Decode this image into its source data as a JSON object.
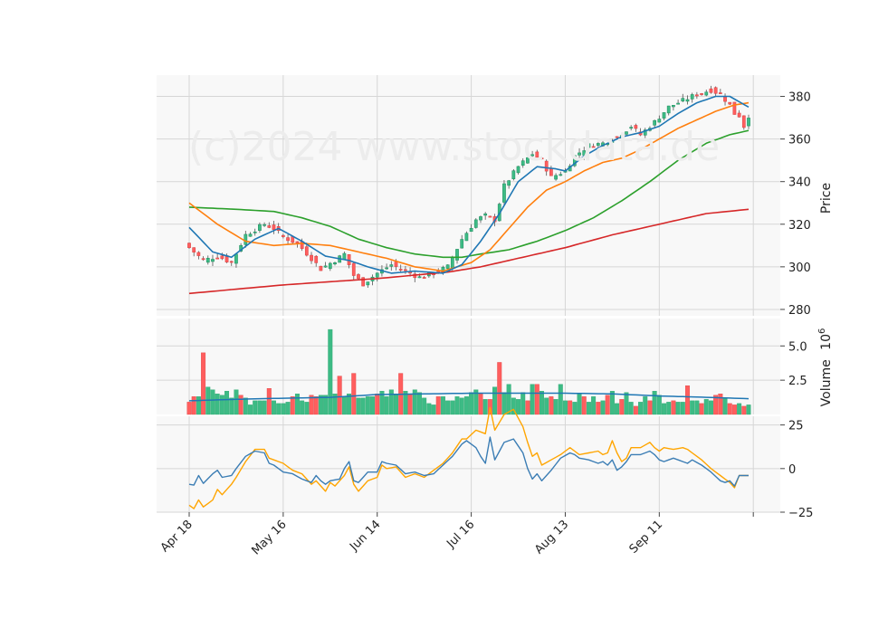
{
  "chart_data": {
    "type": "candlestick",
    "watermark": "(c)2024 www.stockdata.de",
    "colors": {
      "up": "#26a69a",
      "up_fill": "#3dbb85",
      "down": "#ef5350",
      "down_fill": "#ff5e5e",
      "ma_short": "#1f77b4",
      "ma_mid": "#ff7f0e",
      "ma_long": "#2ca02c",
      "ma_200": "#d62728",
      "volume_ma": "#1f77b4",
      "osc_blue": "#3b7db4",
      "osc_orange": "#ffa500",
      "panel_bg": "#f8f8f8",
      "grid": "#d6d6d6"
    },
    "x_axis": {
      "tick_labels": [
        "Apr 18",
        "May 16",
        "Jun 14",
        "Jul 16",
        "Aug 13",
        "Sep 11"
      ],
      "tick_index": [
        0,
        20,
        40,
        60,
        80,
        100
      ],
      "extra_tick_index": 120,
      "n_bars": 120
    },
    "price_panel": {
      "ylabel": "Price",
      "ylim": [
        277,
        390
      ],
      "ticks": [
        280,
        300,
        320,
        340,
        360,
        380
      ],
      "anchors_close": [
        [
          0,
          309
        ],
        [
          3,
          303
        ],
        [
          6,
          305
        ],
        [
          9,
          302
        ],
        [
          12,
          315
        ],
        [
          16,
          320
        ],
        [
          18,
          318
        ],
        [
          20,
          314
        ],
        [
          23,
          311
        ],
        [
          26,
          304
        ],
        [
          28,
          299
        ],
        [
          31,
          303
        ],
        [
          33,
          306
        ],
        [
          35,
          296
        ],
        [
          37,
          292
        ],
        [
          40,
          297
        ],
        [
          43,
          301
        ],
        [
          46,
          298
        ],
        [
          49,
          295
        ],
        [
          52,
          297
        ],
        [
          55,
          300
        ],
        [
          58,
          313
        ],
        [
          61,
          322
        ],
        [
          63,
          324
        ],
        [
          65,
          322
        ],
        [
          67,
          338
        ],
        [
          70,
          347
        ],
        [
          73,
          353
        ],
        [
          75,
          350
        ],
        [
          77,
          342
        ],
        [
          80,
          345
        ],
        [
          82,
          352
        ],
        [
          85,
          357
        ],
        [
          88,
          358
        ],
        [
          91,
          361
        ],
        [
          94,
          366
        ],
        [
          96,
          362
        ],
        [
          99,
          368
        ],
        [
          102,
          375
        ],
        [
          105,
          378
        ],
        [
          108,
          381
        ],
        [
          111,
          383
        ],
        [
          113,
          381
        ],
        [
          115,
          376
        ],
        [
          116,
          372
        ],
        [
          117,
          371
        ],
        [
          118,
          366
        ],
        [
          119,
          371
        ]
      ],
      "anchors_ma20": [
        [
          0,
          318.5
        ],
        [
          5,
          307
        ],
        [
          9,
          304.5
        ],
        [
          14,
          313
        ],
        [
          19,
          318
        ],
        [
          24,
          312
        ],
        [
          29,
          305
        ],
        [
          34,
          303
        ],
        [
          38,
          300
        ],
        [
          43,
          297
        ],
        [
          48,
          298
        ],
        [
          54,
          297
        ],
        [
          58,
          301
        ],
        [
          62,
          312
        ],
        [
          66,
          325
        ],
        [
          70,
          340
        ],
        [
          74,
          347
        ],
        [
          78,
          346
        ],
        [
          80,
          345
        ],
        [
          84,
          352
        ],
        [
          88,
          357
        ],
        [
          92,
          361
        ],
        [
          96,
          363
        ],
        [
          100,
          366
        ],
        [
          104,
          372
        ],
        [
          108,
          377
        ],
        [
          112,
          380
        ],
        [
          115,
          380
        ],
        [
          119,
          375
        ]
      ],
      "anchors_ma50": [
        [
          0,
          330
        ],
        [
          6,
          320
        ],
        [
          12,
          312
        ],
        [
          18,
          310
        ],
        [
          24,
          311
        ],
        [
          30,
          310
        ],
        [
          36,
          307
        ],
        [
          42,
          304
        ],
        [
          48,
          300
        ],
        [
          54,
          298
        ],
        [
          60,
          302
        ],
        [
          64,
          308
        ],
        [
          68,
          318
        ],
        [
          72,
          328
        ],
        [
          76,
          336
        ],
        [
          80,
          340
        ],
        [
          84,
          345
        ],
        [
          88,
          349
        ],
        [
          92,
          351
        ],
        [
          96,
          355
        ],
        [
          100,
          360
        ],
        [
          104,
          365
        ],
        [
          108,
          369
        ],
        [
          112,
          373
        ],
        [
          116,
          376
        ],
        [
          119,
          377
        ]
      ],
      "anchors_ma100": [
        [
          0,
          328
        ],
        [
          10,
          327
        ],
        [
          18,
          326
        ],
        [
          24,
          323
        ],
        [
          30,
          319
        ],
        [
          36,
          313
        ],
        [
          42,
          309
        ],
        [
          48,
          306
        ],
        [
          54,
          304.5
        ],
        [
          58,
          304.5
        ],
        [
          62,
          306
        ],
        [
          68,
          308
        ],
        [
          74,
          312
        ],
        [
          80,
          317
        ],
        [
          86,
          323
        ],
        [
          92,
          331
        ],
        [
          98,
          340
        ],
        [
          104,
          350
        ],
        [
          110,
          358
        ],
        [
          115,
          362
        ],
        [
          119,
          364
        ]
      ],
      "anchors_ma200": [
        [
          0,
          287.5
        ],
        [
          20,
          291.5
        ],
        [
          40,
          294.5
        ],
        [
          55,
          297.5
        ],
        [
          62,
          300
        ],
        [
          70,
          304
        ],
        [
          80,
          309
        ],
        [
          90,
          315
        ],
        [
          100,
          320
        ],
        [
          110,
          325
        ],
        [
          119,
          327
        ]
      ]
    },
    "volume_panel": {
      "ylabel": "Volume",
      "ylabel_exponent": "10",
      "ylabel_exponent_power": "6",
      "ylim": [
        0,
        7
      ],
      "ticks": [
        2.5,
        5.0
      ],
      "tick_labels": [
        "2.5",
        "5.0"
      ],
      "values": [
        0.9,
        1.3,
        1.3,
        4.5,
        2.0,
        1.8,
        1.5,
        1.4,
        1.7,
        1.2,
        1.8,
        1.4,
        1.2,
        0.7,
        1.0,
        1.0,
        1.0,
        1.9,
        1.0,
        0.8,
        0.8,
        0.9,
        1.3,
        1.5,
        1.0,
        0.9,
        1.4,
        1.3,
        1.4,
        1.4,
        6.2,
        1.5,
        2.8,
        1.3,
        1.5,
        3.0,
        1.2,
        1.2,
        1.3,
        1.3,
        1.5,
        1.7,
        1.3,
        1.8,
        1.4,
        3.0,
        1.7,
        1.5,
        1.8,
        1.6,
        1.2,
        0.8,
        0.7,
        1.3,
        1.3,
        1.0,
        1.0,
        1.3,
        1.2,
        1.3,
        1.6,
        1.8,
        1.5,
        1.1,
        1.1,
        2.0,
        3.8,
        1.6,
        2.2,
        1.2,
        1.1,
        1.6,
        1.0,
        2.2,
        2.2,
        1.7,
        1.2,
        1.3,
        1.1,
        2.2,
        1.0,
        1.0,
        0.9,
        1.5,
        1.3,
        0.9,
        1.3,
        0.9,
        1.0,
        1.4,
        1.7,
        0.8,
        1.1,
        1.6,
        0.9,
        0.6,
        0.9,
        1.3,
        1.0,
        1.7,
        1.4,
        0.8,
        0.9,
        1.0,
        0.9,
        0.9,
        2.1,
        1.0,
        1.0,
        0.8,
        1.1,
        1.0,
        1.4,
        1.5,
        1.2,
        0.8,
        0.7,
        0.8,
        0.6,
        0.7
      ],
      "down_days": [
        0,
        1,
        3,
        11,
        17,
        22,
        26,
        27,
        32,
        35,
        40,
        45,
        47,
        53,
        62,
        64,
        66,
        72,
        74,
        77,
        81,
        84,
        87,
        89,
        92,
        95,
        98,
        103,
        106,
        109,
        112,
        113,
        115,
        116,
        118
      ],
      "ma_anchors": [
        [
          0,
          1.0
        ],
        [
          15,
          1.15
        ],
        [
          30,
          1.25
        ],
        [
          40,
          1.45
        ],
        [
          50,
          1.5
        ],
        [
          60,
          1.55
        ],
        [
          70,
          1.55
        ],
        [
          80,
          1.55
        ],
        [
          90,
          1.5
        ],
        [
          100,
          1.35
        ],
        [
          110,
          1.25
        ],
        [
          119,
          1.15
        ]
      ]
    },
    "oscillator_panel": {
      "ylim": [
        -25,
        30
      ],
      "ticks": [
        -25,
        0,
        25
      ],
      "tick_labels": [
        "−25",
        "0",
        "25"
      ],
      "blue_anchors": [
        [
          0,
          -9
        ],
        [
          1,
          -9.5
        ],
        [
          2,
          -4
        ],
        [
          3,
          -8.5
        ],
        [
          5,
          -3
        ],
        [
          6,
          -1
        ],
        [
          7,
          -5
        ],
        [
          9,
          -4
        ],
        [
          10,
          0
        ],
        [
          12,
          7
        ],
        [
          14,
          10
        ],
        [
          16,
          9
        ],
        [
          17,
          3
        ],
        [
          18,
          2
        ],
        [
          20,
          -2
        ],
        [
          22,
          -3
        ],
        [
          24,
          -6
        ],
        [
          26,
          -8
        ],
        [
          27,
          -4
        ],
        [
          28,
          -7
        ],
        [
          29,
          -9
        ],
        [
          30,
          -7
        ],
        [
          32,
          -6
        ],
        [
          33,
          0
        ],
        [
          34,
          4
        ],
        [
          35,
          -7
        ],
        [
          36,
          -8
        ],
        [
          38,
          -2
        ],
        [
          40,
          -2
        ],
        [
          41,
          4
        ],
        [
          42,
          3
        ],
        [
          44,
          2
        ],
        [
          46,
          -3
        ],
        [
          48,
          -2
        ],
        [
          50,
          -4
        ],
        [
          52,
          -3
        ],
        [
          54,
          2
        ],
        [
          56,
          7
        ],
        [
          58,
          14
        ],
        [
          59,
          16
        ],
        [
          61,
          12
        ],
        [
          62,
          7
        ],
        [
          63,
          3
        ],
        [
          64,
          18
        ],
        [
          65,
          5
        ],
        [
          67,
          15
        ],
        [
          69,
          17
        ],
        [
          71,
          9
        ],
        [
          72,
          0
        ],
        [
          73,
          -6
        ],
        [
          74,
          -3
        ],
        [
          75,
          -7
        ],
        [
          77,
          -1
        ],
        [
          79,
          6
        ],
        [
          81,
          9
        ],
        [
          82,
          8
        ],
        [
          83,
          6
        ],
        [
          85,
          5
        ],
        [
          87,
          3
        ],
        [
          88,
          4
        ],
        [
          89,
          2
        ],
        [
          90,
          5
        ],
        [
          91,
          -1
        ],
        [
          92,
          1
        ],
        [
          93,
          4
        ],
        [
          94,
          8
        ],
        [
          96,
          8
        ],
        [
          98,
          10
        ],
        [
          99,
          8
        ],
        [
          100,
          5
        ],
        [
          101,
          4
        ],
        [
          103,
          6
        ],
        [
          105,
          4
        ],
        [
          106,
          3
        ],
        [
          107,
          5
        ],
        [
          109,
          2
        ],
        [
          111,
          -2
        ],
        [
          113,
          -7
        ],
        [
          114,
          -8
        ],
        [
          115,
          -7
        ],
        [
          116,
          -10
        ],
        [
          117,
          -4
        ]
      ],
      "orange_anchors": [
        [
          0,
          -21
        ],
        [
          1,
          -23
        ],
        [
          2,
          -18
        ],
        [
          3,
          -22
        ],
        [
          5,
          -18
        ],
        [
          6,
          -12
        ],
        [
          7,
          -15
        ],
        [
          9,
          -9
        ],
        [
          10,
          -5
        ],
        [
          12,
          4
        ],
        [
          14,
          11
        ],
        [
          16,
          11
        ],
        [
          17,
          6
        ],
        [
          18,
          5
        ],
        [
          20,
          3
        ],
        [
          22,
          -1
        ],
        [
          24,
          -3
        ],
        [
          26,
          -9
        ],
        [
          27,
          -7
        ],
        [
          28,
          -10
        ],
        [
          29,
          -13
        ],
        [
          30,
          -8
        ],
        [
          31,
          -10
        ],
        [
          33,
          -4
        ],
        [
          34,
          1
        ],
        [
          35,
          -9
        ],
        [
          36,
          -13
        ],
        [
          38,
          -7
        ],
        [
          40,
          -5
        ],
        [
          41,
          2
        ],
        [
          42,
          0
        ],
        [
          44,
          1
        ],
        [
          46,
          -5
        ],
        [
          48,
          -3
        ],
        [
          50,
          -5
        ],
        [
          52,
          -1
        ],
        [
          54,
          3
        ],
        [
          56,
          9
        ],
        [
          58,
          17
        ],
        [
          59,
          17
        ],
        [
          61,
          22
        ],
        [
          62,
          21
        ],
        [
          63,
          20
        ],
        [
          64,
          35
        ],
        [
          65,
          22
        ],
        [
          67,
          31
        ],
        [
          69,
          34
        ],
        [
          71,
          24
        ],
        [
          72,
          15
        ],
        [
          73,
          7
        ],
        [
          74,
          9
        ],
        [
          75,
          2
        ],
        [
          77,
          5
        ],
        [
          79,
          8
        ],
        [
          81,
          12
        ],
        [
          82,
          10
        ],
        [
          83,
          8
        ],
        [
          85,
          9
        ],
        [
          87,
          10
        ],
        [
          88,
          8
        ],
        [
          89,
          9
        ],
        [
          90,
          16
        ],
        [
          91,
          9
        ],
        [
          92,
          4
        ],
        [
          93,
          6
        ],
        [
          94,
          12
        ],
        [
          96,
          12
        ],
        [
          98,
          15
        ],
        [
          99,
          12
        ],
        [
          100,
          10
        ],
        [
          101,
          12
        ],
        [
          103,
          11
        ],
        [
          105,
          12
        ],
        [
          106,
          11
        ],
        [
          107,
          9
        ],
        [
          109,
          5
        ],
        [
          111,
          0
        ],
        [
          113,
          -4
        ],
        [
          114,
          -6
        ],
        [
          115,
          -8
        ],
        [
          116,
          -11
        ],
        [
          117,
          -4
        ]
      ]
    }
  }
}
